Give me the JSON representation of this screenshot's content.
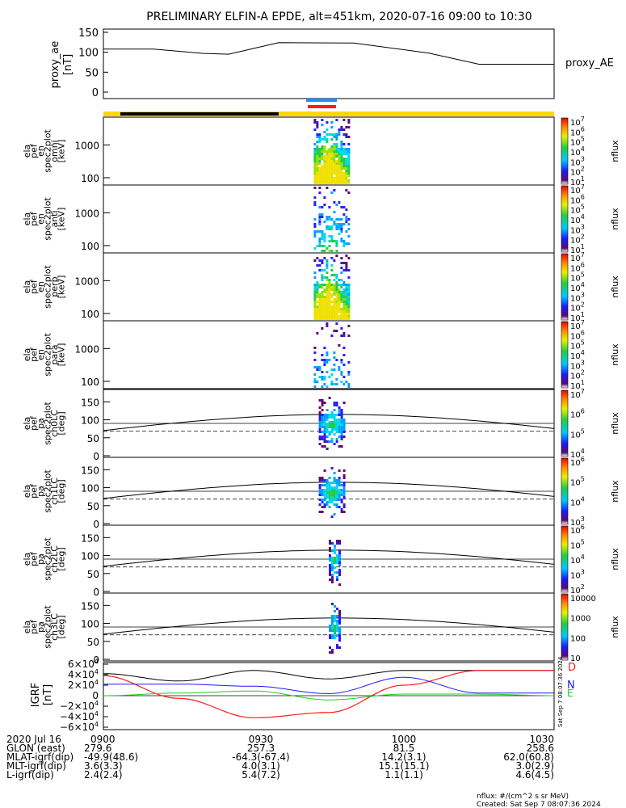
{
  "title": "PRELIMINARY ELFIN-A EPDE, alt=451km, 2020-07-16 09:00 to 10:30",
  "bar_colors": {
    "science_blue": "#1e8fff",
    "science_red": "#ff1a1a",
    "sunlit": "#ffd700",
    "eclipse": "#000000"
  },
  "ae_panel": {
    "ylabel_lines": [
      "proxy_ae",
      "[nT]"
    ],
    "legend": "proxy_AE",
    "ticks": [
      "150",
      "100",
      "50",
      "0"
    ],
    "ylim": [
      0,
      150
    ]
  },
  "spec_panels": [
    {
      "ylabel_lines": [
        "ela",
        "pef",
        "en",
        "spec2plot",
        "omni",
        "[keV]"
      ],
      "ticks": [
        "1000",
        "100"
      ],
      "cbar_ticks": [
        "10^7",
        "10^6",
        "10^5",
        "10^4",
        "10^3",
        "10^2",
        "10^1"
      ],
      "cbar_label": "nflux"
    },
    {
      "ylabel_lines": [
        "ela",
        "pef",
        "en",
        "spec2plot",
        "anti",
        "[keV]"
      ],
      "ticks": [
        "1000",
        "100"
      ],
      "cbar_ticks": [
        "10^7",
        "10^6",
        "10^5",
        "10^4",
        "10^3",
        "10^2",
        "10^1"
      ],
      "cbar_label": "nflux"
    },
    {
      "ylabel_lines": [
        "ela",
        "pef",
        "en",
        "spec2plot",
        "perp",
        "[keV]"
      ],
      "ticks": [
        "1000",
        "100"
      ],
      "cbar_ticks": [
        "10^7",
        "10^6",
        "10^5",
        "10^4",
        "10^3",
        "10^2",
        "10^1"
      ],
      "cbar_label": "nflux"
    },
    {
      "ylabel_lines": [
        "ela",
        "pef",
        "en",
        "spec2plot",
        "para",
        "[keV]"
      ],
      "ticks": [
        "1000",
        "100"
      ],
      "cbar_ticks": [
        "10^7",
        "10^6",
        "10^5",
        "10^4",
        "10^3",
        "10^2",
        "10^1"
      ],
      "cbar_label": "nflux"
    }
  ],
  "pa_panels": [
    {
      "ylabel_lines": [
        "ela",
        "pef",
        "pa",
        "spec2plot",
        "ch0LC",
        "[deg]"
      ],
      "ticks": [
        "150",
        "100",
        "50",
        "0"
      ],
      "cbar_ticks": [
        "10^7",
        "10^6",
        "10^5",
        "10^4"
      ],
      "cbar_label": "nflux"
    },
    {
      "ylabel_lines": [
        "ela",
        "pef",
        "pa",
        "spec2plot",
        "ch1LC",
        "[deg]"
      ],
      "ticks": [
        "150",
        "100",
        "50",
        "0"
      ],
      "cbar_ticks": [
        "10^6",
        "10^5",
        "10^4",
        "10^3"
      ],
      "cbar_label": "nflux"
    },
    {
      "ylabel_lines": [
        "ela",
        "pef",
        "pa",
        "spec2plot",
        "ch2LC",
        "[deg]"
      ],
      "ticks": [
        "150",
        "100",
        "50",
        "0"
      ],
      "cbar_ticks": [
        "10^6",
        "10^5",
        "10^4",
        "10^3",
        "10^2"
      ],
      "cbar_label": "nflux"
    },
    {
      "ylabel_lines": [
        "ela",
        "pef",
        "pa",
        "spec2plot",
        "ch3LC",
        "[deg]"
      ],
      "ticks": [
        "150",
        "100",
        "50",
        "0"
      ],
      "cbar_ticks": [
        "10000",
        "1000",
        "100",
        "10"
      ],
      "cbar_label": "nflux"
    }
  ],
  "igrf_panel": {
    "ylabel_lines": [
      "IGRF",
      "[nT]"
    ],
    "ticks": [
      "6×10^4",
      "4×10^4",
      "2×10^4",
      "0",
      "−2×10^4",
      "−4×10^4",
      "−6×10^4"
    ],
    "legend": [
      {
        "label": "D",
        "color": "#ff1a1a"
      },
      {
        "label": "N",
        "color": "#1a1aff"
      },
      {
        "label": "E",
        "color": "#22cc22"
      }
    ],
    "side_stamp": "Sat Sep  7 08:07:36 2024"
  },
  "chart_data": [
    {
      "type": "line",
      "name": "proxy_AE",
      "x": [
        "09:00",
        "09:10",
        "09:20",
        "09:25",
        "09:35",
        "09:50",
        "10:05",
        "10:15",
        "10:30"
      ],
      "y": [
        108,
        108,
        97,
        95,
        124,
        123,
        98,
        70,
        70
      ],
      "ylim": [
        0,
        150
      ]
    },
    {
      "type": "heatmap",
      "name": "energy spectrograms",
      "yscale": "log",
      "yrange_kev": [
        60,
        7000
      ],
      "burst_time": "09:42-09:49"
    },
    {
      "type": "heatmap",
      "name": "pitch angle spectrograms",
      "ylim": [
        0,
        180
      ],
      "burst_time": "09:43-09:48"
    },
    {
      "type": "line",
      "name": "IGRF",
      "x": [
        "09:00",
        "09:15",
        "09:30",
        "09:45",
        "10:00",
        "10:15",
        "10:30"
      ],
      "series": [
        {
          "name": "D",
          "values": [
            38000,
            -5000,
            -42000,
            -32000,
            20000,
            48000,
            48000
          ]
        },
        {
          "name": "N",
          "values": [
            22000,
            22000,
            18000,
            4000,
            35000,
            5000,
            5000
          ]
        },
        {
          "name": "E",
          "values": [
            0,
            5000,
            9000,
            -8000,
            3000,
            3000,
            0
          ]
        }
      ]
    }
  ],
  "footer": {
    "rows": [
      {
        "label": "2020 Jul 16",
        "values": [
          "0900",
          "0930",
          "1000",
          "1030"
        ]
      },
      {
        "label": "GLON (east)",
        "values": [
          "279.6",
          "257.3",
          "81.5",
          "258.6"
        ]
      },
      {
        "label": "MLAT-igrf(dip)",
        "values": [
          "-49.9(48.6)",
          "-64.3(-67.4)",
          "14.2(3.1)",
          "62.0(60.8)"
        ]
      },
      {
        "label": "MLT-igrf(dip)",
        "values": [
          "3.6(3.3)",
          "4.0(3.1)",
          "15.1(15.1)",
          "3.0(2.9)"
        ]
      },
      {
        "label": "L-igrf(dip)",
        "values": [
          "2.4(2.4)",
          "5.4(7.2)",
          "1.1(1.1)",
          "4.6(4.5)"
        ]
      }
    ],
    "units": "nflux: #/(cm^2 s sr MeV)",
    "created": "Created: Sat Sep  7 08:07:36 2024"
  }
}
